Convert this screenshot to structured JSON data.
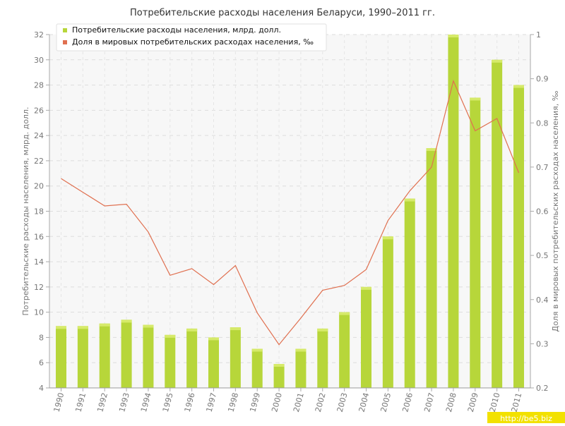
{
  "chart_data": {
    "type": "bar",
    "title": "Потребительские расходы населения Беларуси, 1990–2011 гг.",
    "categories": [
      "1990",
      "1991",
      "1992",
      "1993",
      "1994",
      "1995",
      "1996",
      "1997",
      "1998",
      "1999",
      "2000",
      "2001",
      "2002",
      "2003",
      "2004",
      "2005",
      "2006",
      "2007",
      "2008",
      "2009",
      "2010",
      "2011"
    ],
    "series": [
      {
        "name": "Потребительские расходы населения, млрд. долл.",
        "type": "bar",
        "axis": "left",
        "color": "#b7d63a",
        "values": [
          8.9,
          8.9,
          9.1,
          9.4,
          9.0,
          8.2,
          8.7,
          8.0,
          8.8,
          7.1,
          5.9,
          7.1,
          8.7,
          10.0,
          12.0,
          16.0,
          19.0,
          23.0,
          32.0,
          27.0,
          30.0,
          28.0
        ]
      },
      {
        "name": "Доля в мировых потребительских расходах населения, ‰",
        "type": "line",
        "axis": "right",
        "color": "#e07050",
        "values": [
          0.674,
          0.643,
          0.612,
          0.616,
          0.553,
          0.455,
          0.47,
          0.434,
          0.477,
          0.37,
          0.298,
          0.358,
          0.421,
          0.432,
          0.468,
          0.579,
          0.646,
          0.7,
          0.895,
          0.782,
          0.81,
          0.687
        ]
      }
    ],
    "ylabel": "Потребительские расходы населения, млрд. долл.",
    "ylabel_right": "Доля в мировых потребительских расходах населения, ‰",
    "ylim": [
      4,
      32
    ],
    "yticks": [
      "4",
      "6",
      "8",
      "10",
      "12",
      "14",
      "16",
      "18",
      "20",
      "22",
      "24",
      "26",
      "28",
      "30",
      "32"
    ],
    "ylim_right": [
      0.2,
      1.0
    ],
    "yticks_right": [
      "0.2",
      "0.3",
      "0.4",
      "0.5",
      "0.6",
      "0.7",
      "0.8",
      "0.9",
      "1"
    ],
    "grid": true,
    "legend_position": "top-left",
    "watermark": "http://be5.biz"
  }
}
